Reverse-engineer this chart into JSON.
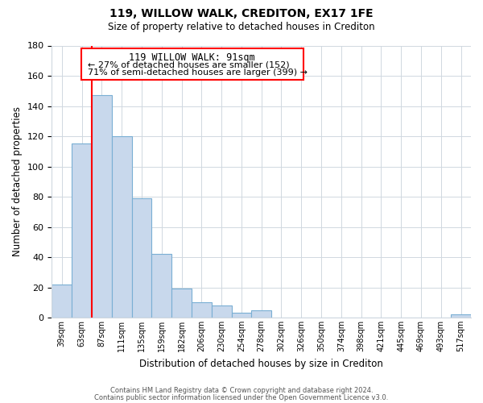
{
  "title": "119, WILLOW WALK, CREDITON, EX17 1FE",
  "subtitle": "Size of property relative to detached houses in Crediton",
  "xlabel": "Distribution of detached houses by size in Crediton",
  "ylabel": "Number of detached properties",
  "categories": [
    "39sqm",
    "63sqm",
    "87sqm",
    "111sqm",
    "135sqm",
    "159sqm",
    "182sqm",
    "206sqm",
    "230sqm",
    "254sqm",
    "278sqm",
    "302sqm",
    "326sqm",
    "350sqm",
    "374sqm",
    "398sqm",
    "421sqm",
    "445sqm",
    "469sqm",
    "493sqm",
    "517sqm"
  ],
  "values": [
    22,
    115,
    147,
    120,
    79,
    42,
    19,
    10,
    8,
    3,
    5,
    0,
    0,
    0,
    0,
    0,
    0,
    0,
    0,
    0,
    2
  ],
  "bar_color": "#c8d8ec",
  "bar_edge_color": "#7aafd4",
  "ylim": [
    0,
    180
  ],
  "yticks": [
    0,
    20,
    40,
    60,
    80,
    100,
    120,
    140,
    160,
    180
  ],
  "red_line_index": 2,
  "annotation_title": "119 WILLOW WALK: 91sqm",
  "annotation_line1": "← 27% of detached houses are smaller (152)",
  "annotation_line2": "71% of semi-detached houses are larger (399) →",
  "footer_line1": "Contains HM Land Registry data © Crown copyright and database right 2024.",
  "footer_line2": "Contains public sector information licensed under the Open Government Licence v3.0.",
  "background_color": "#ffffff",
  "grid_color": "#d0d8e0"
}
